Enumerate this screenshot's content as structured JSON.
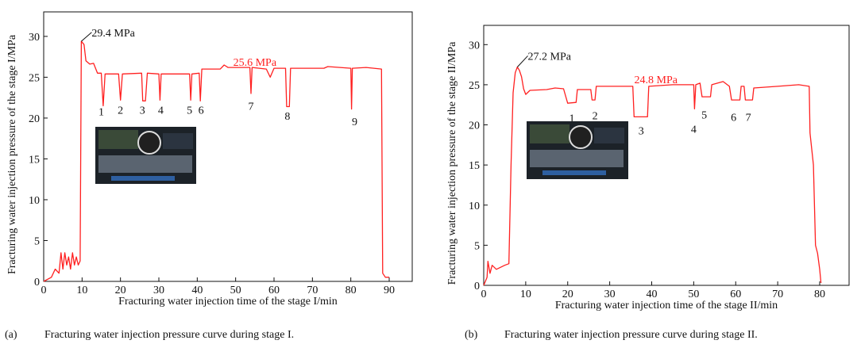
{
  "chart_data": [
    {
      "type": "line",
      "xlabel": "Fracturing water injection time of the stage I/min",
      "ylabel": "Fracturing water injection pressure of the stage I/MPa",
      "caption_label": "(a)",
      "caption": "Fracturing water injection pressure curve during stage I.",
      "color": "#ff2020",
      "xlim": [
        0,
        96
      ],
      "ylim": [
        0,
        33
      ],
      "xticks": [
        0,
        10,
        20,
        30,
        40,
        50,
        60,
        70,
        80,
        90
      ],
      "yticks": [
        0,
        5,
        10,
        15,
        20,
        25,
        30
      ],
      "x": [
        0,
        2,
        3,
        4,
        4.5,
        5,
        5.5,
        6,
        6.5,
        7,
        7.5,
        8,
        8.5,
        9,
        9.5,
        9.8,
        10.5,
        11,
        12,
        13,
        14,
        15,
        15.5,
        16,
        19.5,
        20,
        20.5,
        25.5,
        25.8,
        26.5,
        27,
        30,
        30.3,
        30.6,
        38,
        38.3,
        38.6,
        40.5,
        40.8,
        41.2,
        46,
        47,
        48,
        53.7,
        54,
        54.3,
        58,
        59,
        60,
        63,
        63.3,
        64,
        64.3,
        73,
        74,
        80,
        80.2,
        80.4,
        84,
        88,
        88.3,
        89,
        90
      ],
      "values": [
        0,
        0.5,
        1.5,
        1,
        3.5,
        1.5,
        3.5,
        2,
        3,
        1.5,
        3.5,
        2,
        3,
        2,
        2.5,
        29.4,
        29,
        27,
        26.6,
        26.7,
        25.5,
        25.5,
        21.5,
        25.4,
        25.4,
        22.2,
        25.4,
        25.5,
        22.1,
        22.1,
        25.5,
        25.4,
        22.2,
        25.4,
        25.4,
        22.2,
        25.4,
        25.5,
        22.1,
        26,
        26,
        26.5,
        26.2,
        26.2,
        23,
        26.2,
        26,
        25,
        26.1,
        26.1,
        21.4,
        21.4,
        26.1,
        26.1,
        26.3,
        26.1,
        21.1,
        26.1,
        26.2,
        26,
        1,
        0.5,
        0.5
      ],
      "annotations": [
        {
          "text": "29.4 MPa",
          "x": 12.5,
          "y": 30.5,
          "point": [
            9.8,
            29.4
          ]
        },
        {
          "text": "25.6 MPa",
          "x": 55,
          "y": 26.9,
          "color": "#ff2020"
        },
        {
          "text": "1",
          "x": 15,
          "y": 20.8
        },
        {
          "text": "2",
          "x": 20,
          "y": 21
        },
        {
          "text": "3",
          "x": 25.7,
          "y": 21
        },
        {
          "text": "4",
          "x": 30.5,
          "y": 21
        },
        {
          "text": "5",
          "x": 38,
          "y": 21
        },
        {
          "text": "6",
          "x": 41,
          "y": 21
        },
        {
          "text": "7",
          "x": 54,
          "y": 21.5
        },
        {
          "text": "8",
          "x": 63.5,
          "y": 20.3
        },
        {
          "text": "9",
          "x": 81,
          "y": 19.6
        }
      ]
    },
    {
      "type": "line",
      "xlabel": "Fracturing water injection time of the stage II/min",
      "ylabel": "Fracturing water injection pressure of the stage II/MPa",
      "caption_label": "(b)",
      "caption": "Fracturing water injection pressure curve during stage II.",
      "color": "#ff2020",
      "xlim": [
        0,
        87
      ],
      "ylim": [
        0,
        32.4
      ],
      "xticks": [
        0,
        10,
        20,
        30,
        40,
        50,
        60,
        70,
        80
      ],
      "yticks": [
        0,
        5,
        10,
        15,
        20,
        25,
        30
      ],
      "x": [
        0,
        0.8,
        1,
        1.5,
        2,
        3,
        5,
        6,
        6.5,
        7,
        7.5,
        8,
        8.5,
        9,
        9.5,
        10,
        11,
        15,
        17,
        19,
        20,
        22,
        22.3,
        25.5,
        25.8,
        26.5,
        26.8,
        35.5,
        35.8,
        39,
        39.3,
        45,
        50,
        50.2,
        50.5,
        51.5,
        52,
        54,
        54.3,
        57,
        58.5,
        59,
        61,
        61.3,
        62,
        62.3,
        64,
        64.3,
        70,
        75,
        77.5,
        77.7,
        78.5,
        79,
        79.5,
        80,
        80.3
      ],
      "values": [
        0,
        1,
        3,
        1.5,
        2.5,
        2,
        2.5,
        2.7,
        15,
        24,
        26.5,
        27.2,
        26.8,
        26,
        24.5,
        23.8,
        24.3,
        24.4,
        24.6,
        24.5,
        22.7,
        22.8,
        24.4,
        24.4,
        23.1,
        23.1,
        24.8,
        24.8,
        21,
        21,
        24.8,
        25,
        25,
        22,
        25,
        25.2,
        23.5,
        23.5,
        25,
        25.4,
        24.8,
        23.1,
        23.1,
        24.8,
        24.8,
        23.1,
        23.1,
        24.6,
        24.8,
        25,
        24.8,
        19,
        15,
        5,
        4,
        2,
        0.3
      ],
      "annotations": [
        {
          "text": "27.2 MPa",
          "x": 10.5,
          "y": 28.6,
          "point": [
            8,
            27.2
          ]
        },
        {
          "text": "24.8 MPa",
          "x": 41,
          "y": 25.7,
          "color": "#ff2020"
        },
        {
          "text": "1",
          "x": 21,
          "y": 20.9
        },
        {
          "text": "2",
          "x": 26.5,
          "y": 21.2
        },
        {
          "text": "3",
          "x": 37.5,
          "y": 19.3
        },
        {
          "text": "4",
          "x": 50,
          "y": 19.5
        },
        {
          "text": "5",
          "x": 52.5,
          "y": 21.3
        },
        {
          "text": "6",
          "x": 59.5,
          "y": 21
        },
        {
          "text": "7",
          "x": 63,
          "y": 21
        }
      ]
    }
  ]
}
